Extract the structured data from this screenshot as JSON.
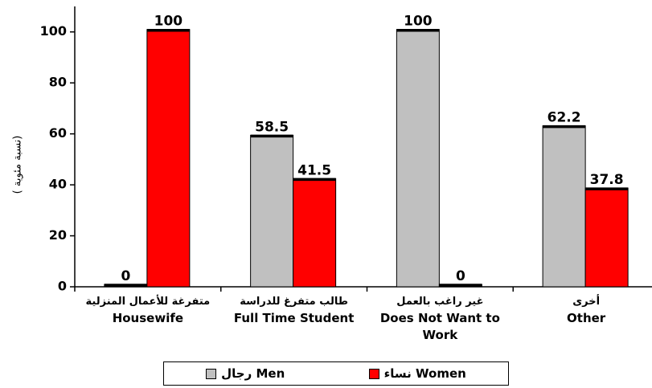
{
  "chart_data": {
    "type": "bar",
    "y_label": "( نسبة مئوية)",
    "categories": [
      "Housewife",
      "Full Time Student",
      "Does Not Want to Work",
      "Other"
    ],
    "categories_arabic": [
      "متفرغة للأعمال المنزلية",
      "طالب متفرغ للدراسة",
      "غير راغب بالعمل",
      "أخرى"
    ],
    "series": [
      {
        "name": "رجال Men",
        "color": "#c0c0c0",
        "values": [
          0,
          58.5,
          100,
          62.2
        ]
      },
      {
        "name": "نساء Women",
        "color": "#ff0000",
        "values": [
          100,
          41.5,
          0,
          37.8
        ]
      }
    ],
    "ylim": [
      0,
      110
    ],
    "yticks": [
      0,
      20,
      40,
      60,
      80,
      100
    ],
    "grid": false,
    "legend": "bottom"
  }
}
